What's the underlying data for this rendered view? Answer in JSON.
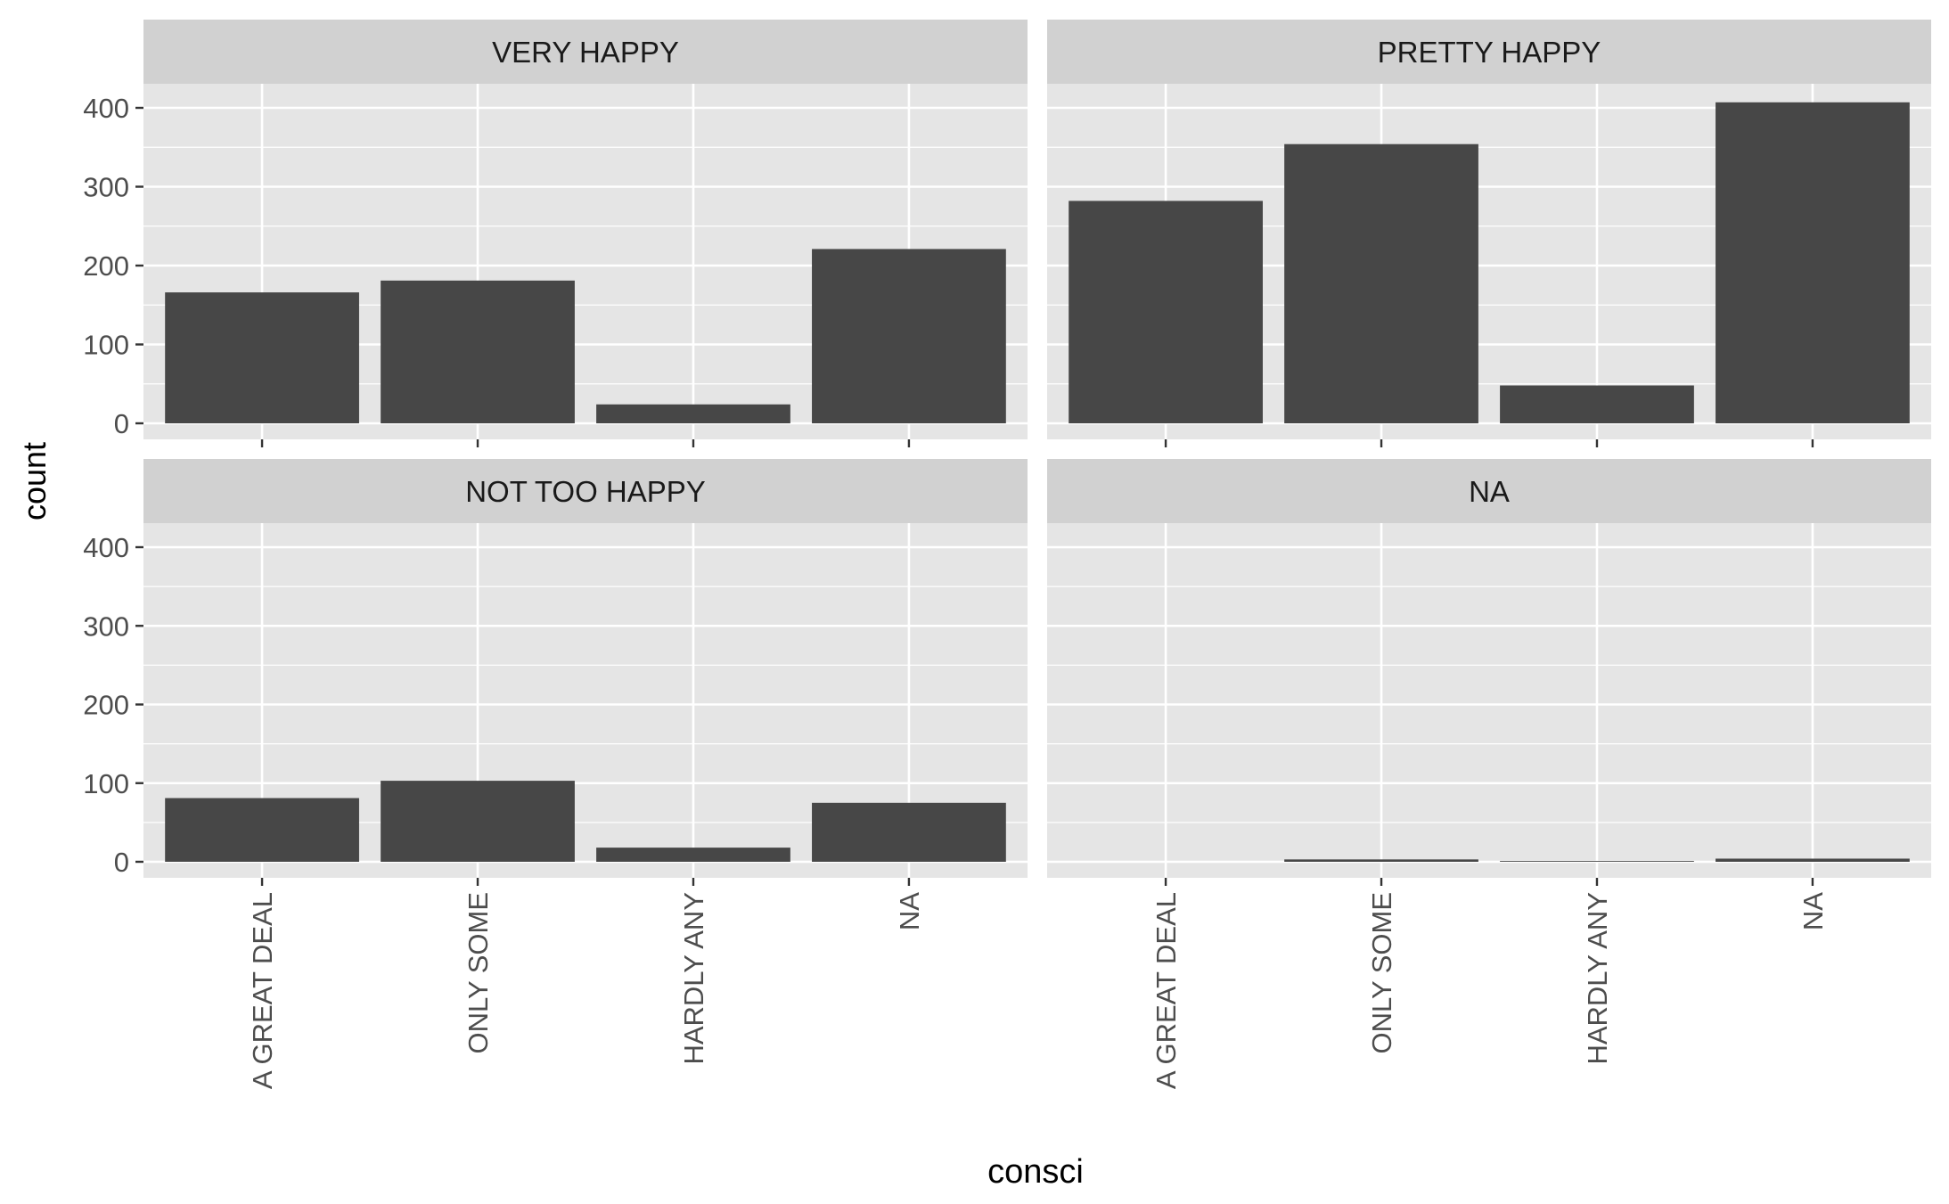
{
  "chart_data": {
    "type": "bar",
    "layout": "facet_wrap",
    "xlabel": "consci",
    "ylabel": "count",
    "categories": [
      "A GREAT DEAL",
      "ONLY SOME",
      "HARDLY ANY",
      "NA"
    ],
    "y_ticks": [
      "0",
      "100",
      "200",
      "300",
      "400"
    ],
    "ylim": [
      0,
      430
    ],
    "grid": true,
    "colors": {
      "bar": "#474747",
      "panel_background": "#e5e5e5",
      "strip_background": "#d1d1d1",
      "gridline": "#ffffff",
      "text": "#4d4d4d",
      "title": "#000000"
    },
    "panels": [
      {
        "title": "VERY HAPPY",
        "values": [
          166,
          181,
          24,
          221
        ]
      },
      {
        "title": "PRETTY HAPPY",
        "values": [
          282,
          354,
          48,
          407
        ]
      },
      {
        "title": "NOT TOO HAPPY",
        "values": [
          81,
          103,
          18,
          75
        ]
      },
      {
        "title": "NA",
        "values": [
          0,
          3,
          1,
          4
        ]
      }
    ]
  }
}
